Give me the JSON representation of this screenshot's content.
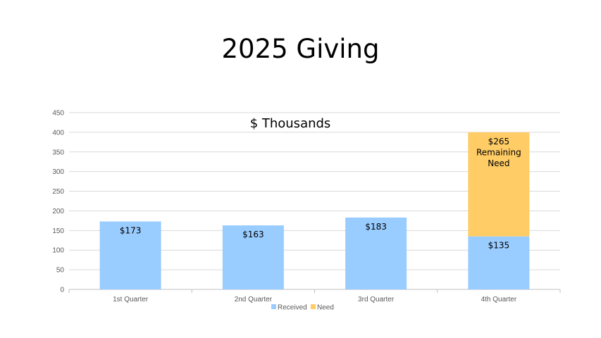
{
  "slide": {
    "title": "2025 Giving"
  },
  "chart_data": {
    "type": "bar",
    "stacked": true,
    "subtitle": "$ Thousands",
    "categories": [
      "1st Quarter",
      "2nd Quarter",
      "3rd Quarter",
      "4th Quarter"
    ],
    "series": [
      {
        "name": "Received",
        "color": "#99CCFF",
        "values": [
          173,
          163,
          183,
          135
        ],
        "labels": [
          [
            "$173"
          ],
          [
            "$163"
          ],
          [
            "$183"
          ],
          [
            "$135"
          ]
        ]
      },
      {
        "name": "Need",
        "color": "#FFCC66",
        "values": [
          0,
          0,
          0,
          265
        ],
        "labels": [
          [],
          [],
          [],
          [
            "$265",
            "Remaining",
            "Need"
          ]
        ]
      }
    ],
    "ylim": [
      0,
      450
    ],
    "yticks": [
      0,
      50,
      100,
      150,
      200,
      250,
      300,
      350,
      400,
      450
    ],
    "grid": true,
    "legend_position": "bottom"
  }
}
